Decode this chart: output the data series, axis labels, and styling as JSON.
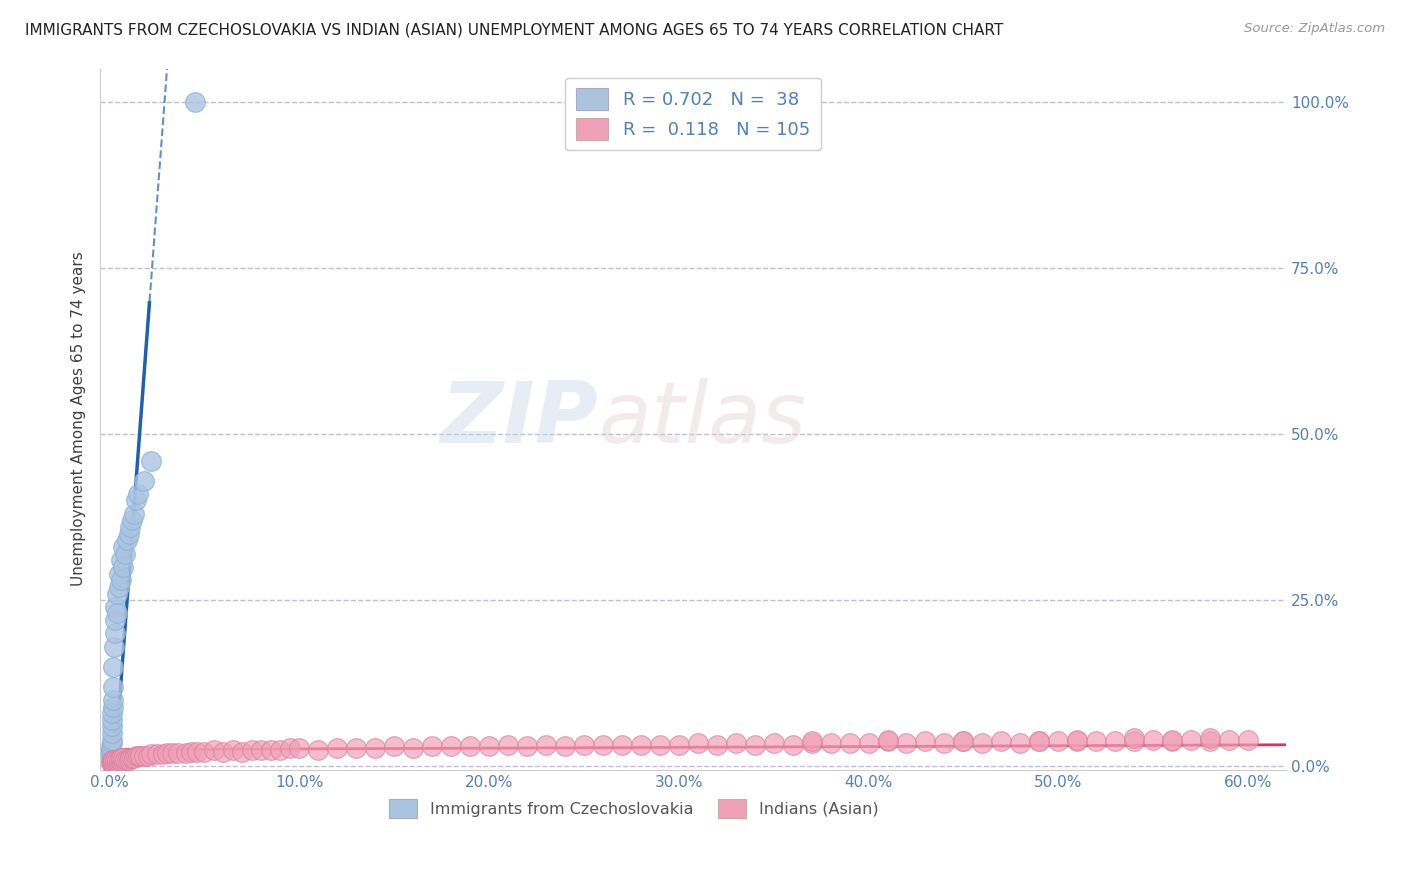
{
  "title": "IMMIGRANTS FROM CZECHOSLOVAKIA VS INDIAN (ASIAN) UNEMPLOYMENT AMONG AGES 65 TO 74 YEARS CORRELATION CHART",
  "source": "Source: ZipAtlas.com",
  "ylabel": "Unemployment Among Ages 65 to 74 years",
  "xlim": [
    -0.005,
    0.62
  ],
  "ylim": [
    -0.005,
    1.05
  ],
  "xticks": [
    0.0,
    0.1,
    0.2,
    0.3,
    0.4,
    0.5,
    0.6
  ],
  "xticklabels": [
    "0.0%",
    "10.0%",
    "20.0%",
    "30.0%",
    "40.0%",
    "50.0%",
    "60.0%"
  ],
  "yticks": [
    0.0,
    0.25,
    0.5,
    0.75,
    1.0
  ],
  "yticklabels": [
    "0.0%",
    "25.0%",
    "50.0%",
    "75.0%",
    "100.0%"
  ],
  "blue_R": 0.702,
  "blue_N": 38,
  "pink_R": 0.118,
  "pink_N": 105,
  "blue_color": "#aac4e0",
  "pink_color": "#f0a0b8",
  "blue_line_color": "#2060b0",
  "pink_line_color": "#e03060",
  "watermark_zip": "ZIP",
  "watermark_atlas": "atlas",
  "background_color": "#ffffff",
  "grid_color": "#c0c0d0",
  "tick_color": "#5080c0",
  "ylabel_color": "#404040",
  "blue_slope": 38.0,
  "blue_intercept": -0.1,
  "pink_slope": 0.012,
  "pink_intercept": 0.025,
  "blue_scatter_x": [
    0.0005,
    0.0006,
    0.0007,
    0.0008,
    0.0009,
    0.001,
    0.001,
    0.001,
    0.001,
    0.0015,
    0.0015,
    0.002,
    0.002,
    0.002,
    0.002,
    0.0025,
    0.003,
    0.003,
    0.003,
    0.004,
    0.004,
    0.005,
    0.005,
    0.006,
    0.006,
    0.007,
    0.007,
    0.008,
    0.009,
    0.01,
    0.011,
    0.012,
    0.013,
    0.014,
    0.015,
    0.018,
    0.022,
    0.045
  ],
  "blue_scatter_y": [
    0.01,
    0.015,
    0.02,
    0.025,
    0.03,
    0.035,
    0.04,
    0.05,
    0.06,
    0.07,
    0.08,
    0.09,
    0.1,
    0.12,
    0.15,
    0.18,
    0.2,
    0.22,
    0.24,
    0.23,
    0.26,
    0.27,
    0.29,
    0.28,
    0.31,
    0.3,
    0.33,
    0.32,
    0.34,
    0.35,
    0.36,
    0.37,
    0.38,
    0.4,
    0.41,
    0.43,
    0.46,
    1.0
  ],
  "pink_scatter_x": [
    0.0005,
    0.001,
    0.001,
    0.0015,
    0.002,
    0.002,
    0.003,
    0.003,
    0.004,
    0.004,
    0.005,
    0.005,
    0.006,
    0.006,
    0.007,
    0.007,
    0.008,
    0.009,
    0.01,
    0.011,
    0.012,
    0.013,
    0.014,
    0.015,
    0.016,
    0.018,
    0.02,
    0.022,
    0.025,
    0.028,
    0.03,
    0.033,
    0.036,
    0.04,
    0.043,
    0.046,
    0.05,
    0.055,
    0.06,
    0.065,
    0.07,
    0.075,
    0.08,
    0.085,
    0.09,
    0.095,
    0.1,
    0.11,
    0.12,
    0.13,
    0.14,
    0.15,
    0.16,
    0.17,
    0.18,
    0.19,
    0.2,
    0.21,
    0.22,
    0.23,
    0.24,
    0.25,
    0.26,
    0.27,
    0.28,
    0.29,
    0.3,
    0.31,
    0.32,
    0.33,
    0.34,
    0.35,
    0.36,
    0.37,
    0.38,
    0.39,
    0.4,
    0.41,
    0.42,
    0.43,
    0.44,
    0.45,
    0.46,
    0.47,
    0.48,
    0.49,
    0.5,
    0.51,
    0.52,
    0.53,
    0.54,
    0.55,
    0.56,
    0.57,
    0.58,
    0.59,
    0.6,
    0.37,
    0.41,
    0.45,
    0.49,
    0.51,
    0.54,
    0.56,
    0.58
  ],
  "pink_scatter_y": [
    0.005,
    0.005,
    0.01,
    0.005,
    0.005,
    0.01,
    0.005,
    0.01,
    0.005,
    0.01,
    0.005,
    0.01,
    0.008,
    0.012,
    0.008,
    0.012,
    0.01,
    0.01,
    0.01,
    0.012,
    0.012,
    0.012,
    0.015,
    0.015,
    0.015,
    0.015,
    0.015,
    0.018,
    0.018,
    0.018,
    0.02,
    0.02,
    0.02,
    0.02,
    0.022,
    0.022,
    0.022,
    0.025,
    0.022,
    0.025,
    0.022,
    0.025,
    0.025,
    0.025,
    0.025,
    0.028,
    0.028,
    0.025,
    0.028,
    0.028,
    0.028,
    0.03,
    0.028,
    0.03,
    0.03,
    0.03,
    0.03,
    0.032,
    0.03,
    0.032,
    0.03,
    0.032,
    0.032,
    0.032,
    0.032,
    0.032,
    0.032,
    0.035,
    0.032,
    0.035,
    0.032,
    0.035,
    0.032,
    0.035,
    0.035,
    0.035,
    0.035,
    0.038,
    0.035,
    0.038,
    0.035,
    0.038,
    0.035,
    0.038,
    0.035,
    0.038,
    0.038,
    0.038,
    0.038,
    0.038,
    0.038,
    0.04,
    0.038,
    0.04,
    0.038,
    0.04,
    0.04,
    0.038,
    0.04,
    0.038,
    0.038,
    0.04,
    0.042,
    0.04,
    0.042
  ]
}
